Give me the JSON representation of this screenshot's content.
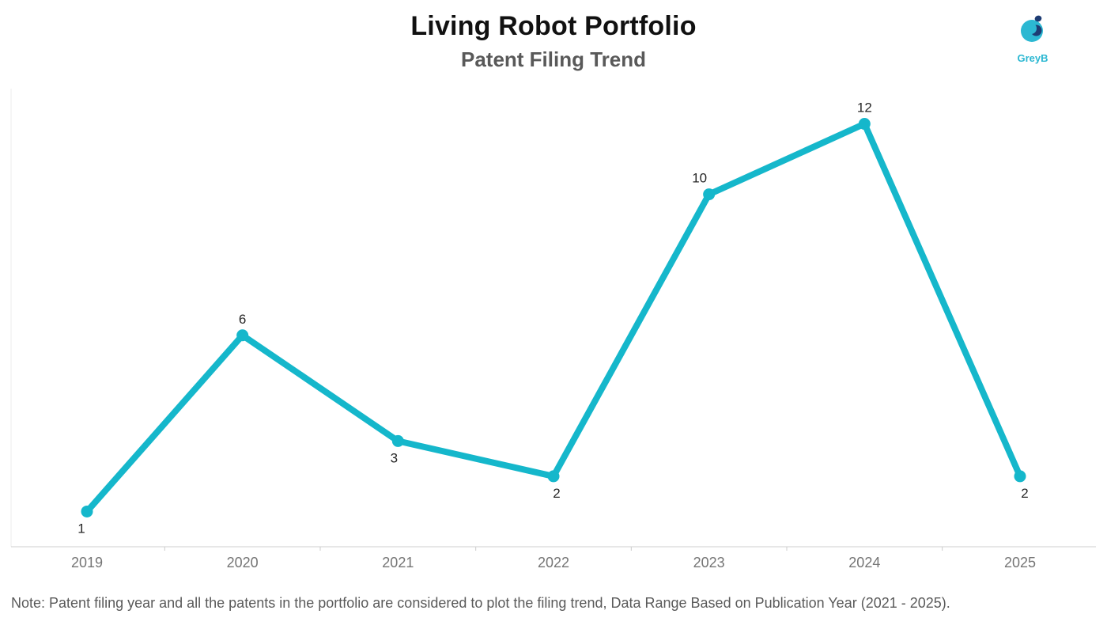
{
  "header": {
    "title": "Living Robot Portfolio",
    "subtitle": "Patent Filing Trend"
  },
  "logo": {
    "text": "GreyB",
    "accent_color": "#2cb8d2",
    "dark_color": "#1d3c73"
  },
  "chart_data": {
    "type": "line",
    "title": "Living Robot Portfolio",
    "subtitle": "Patent Filing Trend",
    "categories": [
      "2019",
      "2020",
      "2021",
      "2022",
      "2023",
      "2024",
      "2025"
    ],
    "values": [
      1,
      6,
      3,
      2,
      10,
      12,
      2
    ],
    "ylim": [
      0,
      13
    ],
    "grid": false,
    "legend": "none",
    "line_color": "#15b7cb",
    "label_positions": [
      "below",
      "above",
      "below",
      "below",
      "above",
      "above",
      "below"
    ],
    "label_dx": [
      -7,
      0,
      -5,
      4,
      -12,
      0,
      6
    ]
  },
  "note": {
    "text": "Note: Patent filing year and all the patents in the portfolio are considered to plot the filing trend, Data Range Based on Publication Year (2021 - 2025)."
  }
}
